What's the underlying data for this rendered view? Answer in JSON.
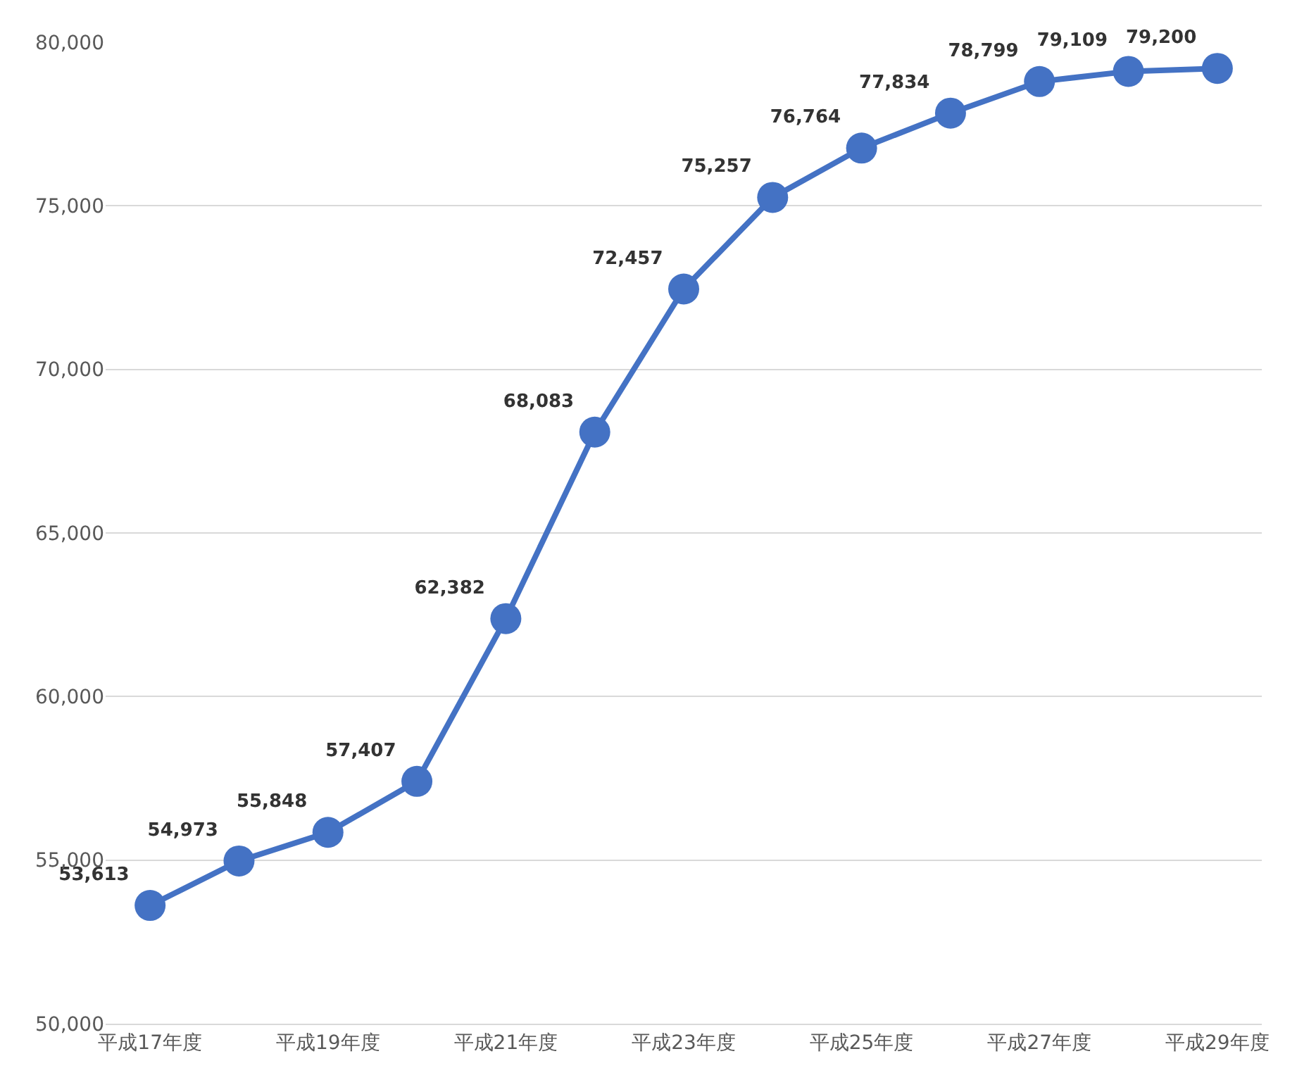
{
  "chart_data": {
    "type": "line",
    "categories": [
      "平成17年度",
      null,
      "平成19年度",
      null,
      "平成21年度",
      null,
      "平成23年度",
      null,
      "平成25年度",
      null,
      "平成27年度",
      null,
      "平成29年度"
    ],
    "series": [
      {
        "color": "#4472c4",
        "values": [
          53613,
          54973,
          55848,
          57407,
          62382,
          68083,
          72457,
          75257,
          76764,
          77834,
          78799,
          79109,
          79200
        ],
        "value_labels": [
          "53,613",
          "54,973",
          "55,848",
          "57,407",
          "62,382",
          "68,083",
          "72,457",
          "75,257",
          "76,764",
          "77,834",
          "78,799",
          "79,109",
          "79,200"
        ]
      }
    ],
    "ylim": [
      50000,
      80000
    ],
    "yticks": [
      {
        "value": 50000,
        "label": "50,000"
      },
      {
        "value": 55000,
        "label": "55,000"
      },
      {
        "value": 60000,
        "label": "60,000"
      },
      {
        "value": 65000,
        "label": "65,000"
      },
      {
        "value": 70000,
        "label": "70,000"
      },
      {
        "value": 75000,
        "label": "75,000"
      },
      {
        "value": 80000,
        "label": "80,000"
      }
    ],
    "grid": "y",
    "marker": "circle",
    "line_style": "solid"
  }
}
